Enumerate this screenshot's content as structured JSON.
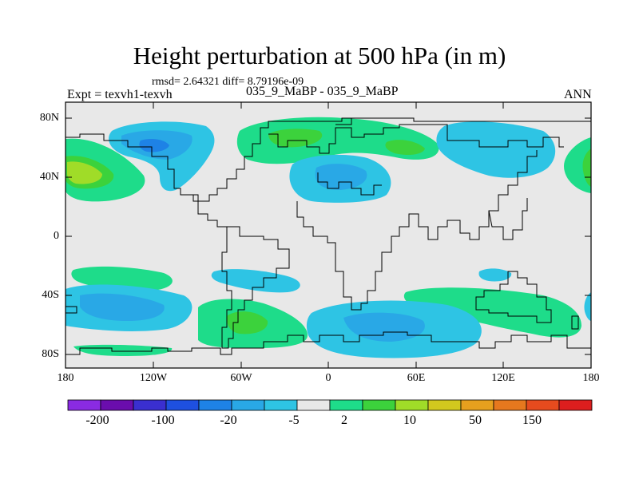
{
  "title": "Height perturbation at 500 hPa (in m)",
  "stats": "rmsd= 2.64321 diff= 8.79196e-09",
  "expt": "Expt = texvh1-texvh",
  "case_label": "035_9_MaBP - 035_9_MaBP",
  "season": "ANN",
  "map": {
    "projection": "cylindrical-equidistant",
    "lat_range": [
      -90,
      90
    ],
    "lon_range": [
      -180,
      180
    ],
    "lat_ticks": [
      "80N",
      "40N",
      "0",
      "40S",
      "80S"
    ],
    "lon_ticks": [
      "180",
      "120W",
      "60W",
      "0",
      "60E",
      "120E",
      "180"
    ],
    "background_color": "#e8e8e8"
  },
  "colorbar": {
    "colors": [
      "#8a2be2",
      "#6a0dad",
      "#3a2fd0",
      "#1e50e0",
      "#1e82e6",
      "#29a8e6",
      "#2ec4e4",
      "#e8e8e8",
      "#1edc8a",
      "#3cd23c",
      "#a0dc28",
      "#d2c81e",
      "#e6a01e",
      "#e6781e",
      "#e64b1e",
      "#dc1e1e"
    ],
    "labels": [
      "-200",
      "-100",
      "-20",
      "-5",
      "2",
      "10",
      "50",
      "150"
    ]
  }
}
